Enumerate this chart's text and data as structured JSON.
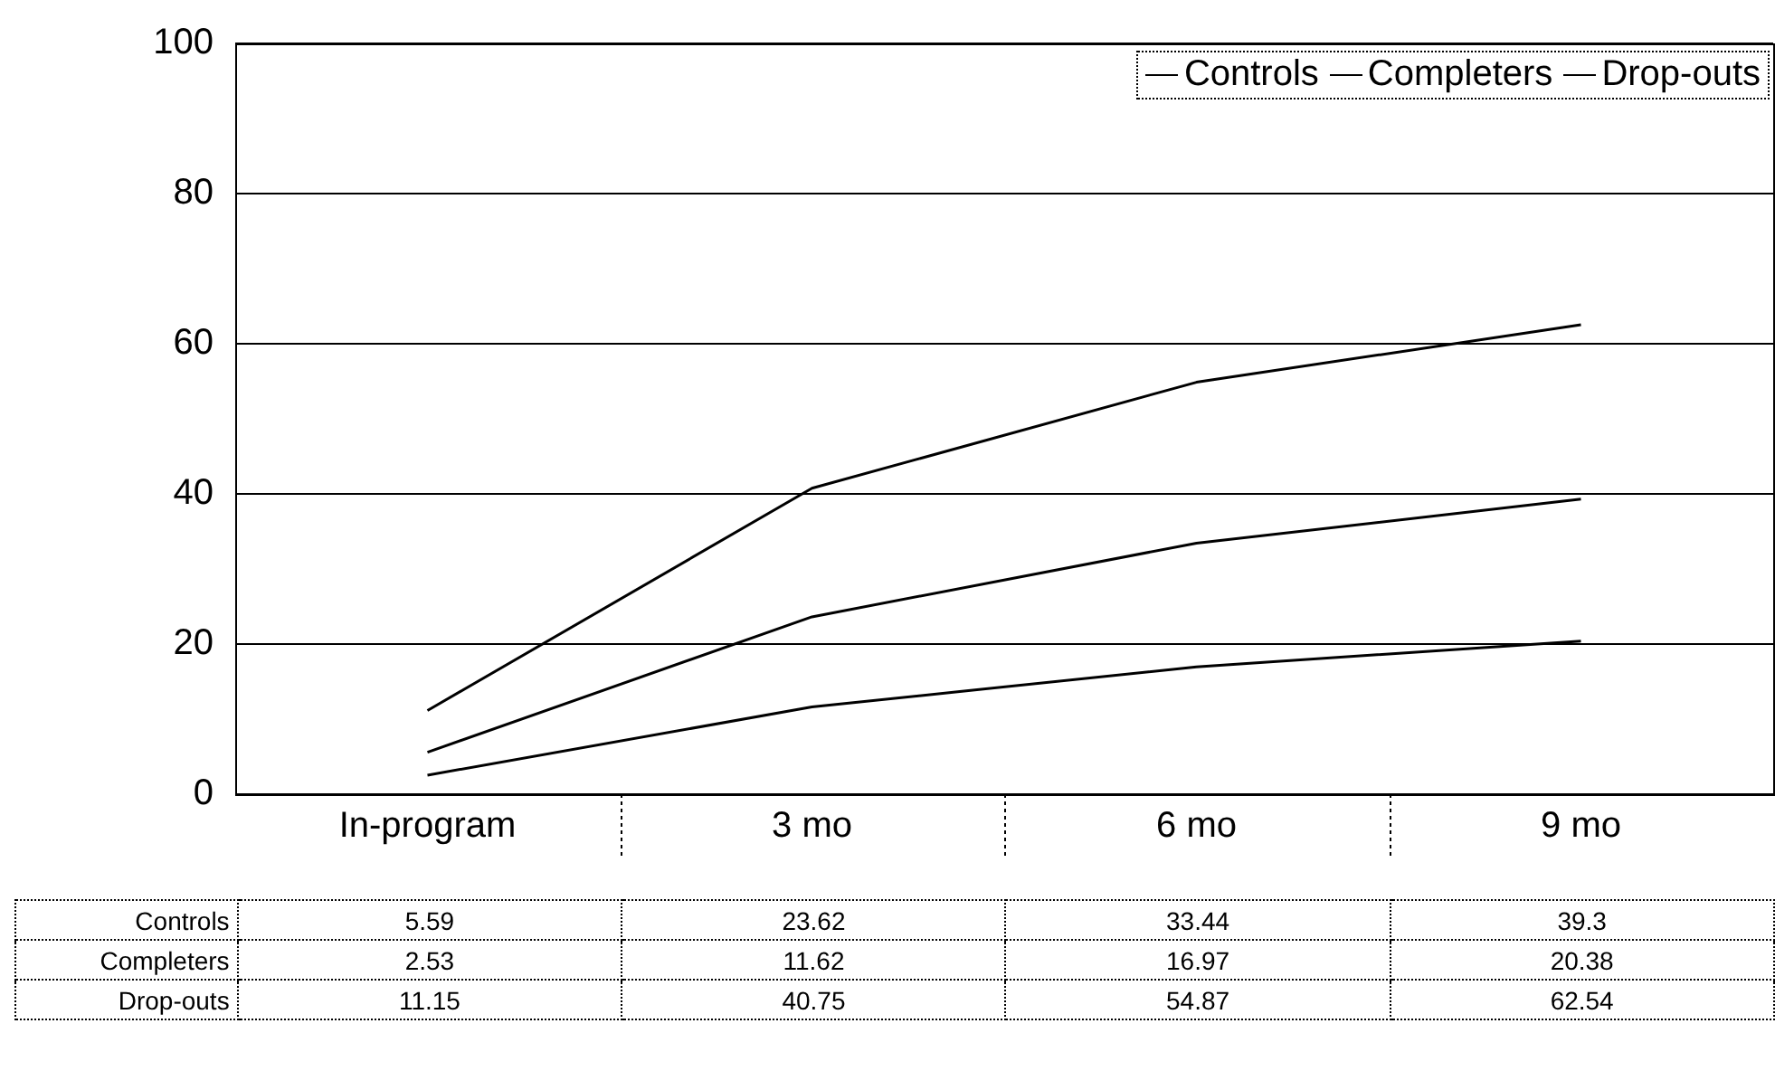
{
  "chart_data": {
    "type": "line",
    "categories": [
      "In-program",
      "3 mo",
      "6 mo",
      "9 mo"
    ],
    "series": [
      {
        "name": "Controls",
        "color": "#000000",
        "values": [
          5.59,
          23.62,
          33.44,
          39.3
        ]
      },
      {
        "name": "Completers",
        "color": "#000000",
        "values": [
          2.53,
          11.62,
          16.97,
          20.38
        ]
      },
      {
        "name": "Drop-outs",
        "color": "#000000",
        "values": [
          11.15,
          40.75,
          54.87,
          62.54
        ]
      }
    ],
    "ylim": [
      0,
      100
    ],
    "yticks": [
      0,
      20,
      40,
      60,
      80,
      100
    ],
    "grid": "y",
    "legend": "top right",
    "marker": "none",
    "data_labels": true
  }
}
